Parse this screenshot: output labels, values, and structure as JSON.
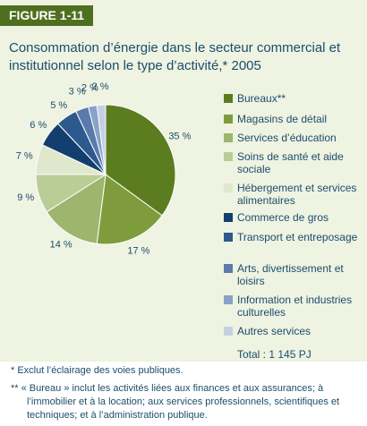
{
  "chart_data": {
    "type": "pie",
    "figure_label": "FIGURE 1-11",
    "title": "Consommation d’énergie dans le secteur commercial et institutionnel selon le type d’activité,* 2005",
    "categories": [
      "Bureaux**",
      "Magasins de détail",
      "Services d’éducation",
      "Soins de santé et aide sociale",
      "Hébergement et services alimentaires",
      "Commerce de gros",
      "Transport et entreposage",
      "Arts, divertissement et loisirs",
      "Information et industries culturelles",
      "Autres services"
    ],
    "values": [
      35,
      17,
      14,
      9,
      7,
      6,
      5,
      3,
      2,
      2
    ],
    "value_labels": [
      "35 %",
      "17 %",
      "14 %",
      "9 %",
      "7 %",
      "6 %",
      "5 %",
      "3 %",
      "2 %",
      "2 %"
    ],
    "colors": [
      "#5b7d1f",
      "#7f9c3c",
      "#9db56c",
      "#bacd96",
      "#dfe8cc",
      "#133f6f",
      "#2c5a8e",
      "#5a7aab",
      "#8aa2c8",
      "#c3d0e4"
    ],
    "total_label": "Total : 1 145 PJ",
    "footnotes": [
      "*   Exclut l’éclairage des voies publiques.",
      "** « Bureau » inclut les activités liées aux finances et aux assurances; à l’immobilier et à la location; aux services professionnels, scientifiques et techniques; et à l’administration publique."
    ]
  }
}
